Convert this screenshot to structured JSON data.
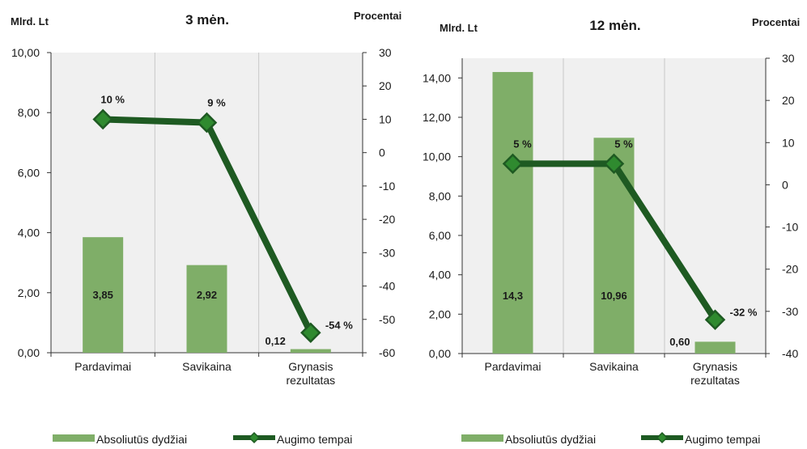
{
  "colors": {
    "bar": "#7fae68",
    "line": "#1e5a22",
    "marker": "#2f8a2f",
    "plot_bg": "#f0f0f0",
    "grid": "#c8c8c8"
  },
  "chart_data": [
    {
      "type": "bar+line",
      "title": "3 mėn.",
      "ylabel_left": "Mlrd. Lt",
      "ylabel_right": "Procentai",
      "categories": [
        "Pardavimai",
        "Savikaina",
        "Grynasis rezultatas"
      ],
      "category_lines": [
        [
          "Pardavimai"
        ],
        [
          "Savikaina"
        ],
        [
          "Grynasis",
          "rezultatas"
        ]
      ],
      "series": [
        {
          "name": "Absoliutūs dydžiai",
          "kind": "bar",
          "axis": "left",
          "values": [
            3.85,
            2.92,
            0.12
          ],
          "labels": [
            "3,85",
            "2,92",
            "0,12"
          ]
        },
        {
          "name": "Augimo tempai",
          "kind": "line",
          "axis": "right",
          "values": [
            10,
            9,
            -54
          ],
          "labels": [
            "10 %",
            "9 %",
            "-54 %"
          ]
        }
      ],
      "ylim_left": [
        0,
        10
      ],
      "yticks_left": [
        0,
        2,
        4,
        6,
        8,
        10
      ],
      "ytick_labels_left": [
        "0,00",
        "2,00",
        "4,00",
        "6,00",
        "8,00",
        "10,00"
      ],
      "ylim_right": [
        -60,
        30
      ],
      "yticks_right": [
        -60,
        -50,
        -40,
        -30,
        -20,
        -10,
        0,
        10,
        20,
        30
      ],
      "ytick_labels_right": [
        "-60",
        "-50",
        "-40",
        "-30",
        "-20",
        "-10",
        "0",
        "10",
        "20",
        "30"
      ],
      "grid": "vertical",
      "legend": "bottom"
    },
    {
      "type": "bar+line",
      "title": "12 mėn.",
      "ylabel_left": "Mlrd. Lt",
      "ylabel_right": "Procentai",
      "categories": [
        "Pardavimai",
        "Savikaina",
        "Grynasis rezultatas"
      ],
      "category_lines": [
        [
          "Pardavimai"
        ],
        [
          "Savikaina"
        ],
        [
          "Grynasis",
          "rezultatas"
        ]
      ],
      "series": [
        {
          "name": "Absoliutūs dydžiai",
          "kind": "bar",
          "axis": "left",
          "values": [
            14.3,
            10.96,
            0.6
          ],
          "labels": [
            "14,3",
            "10,96",
            "0,60"
          ]
        },
        {
          "name": "Augimo tempai",
          "kind": "line",
          "axis": "right",
          "values": [
            5,
            5,
            -32
          ],
          "labels": [
            "5 %",
            "5 %",
            "-32 %"
          ]
        }
      ],
      "ylim_left": [
        0,
        15
      ],
      "yticks_left": [
        0,
        2,
        4,
        6,
        8,
        10,
        12,
        14
      ],
      "ytick_labels_left": [
        "0,00",
        "2,00",
        "4,00",
        "6,00",
        "8,00",
        "10,00",
        "12,00",
        "14,00"
      ],
      "ylim_right": [
        -40,
        30
      ],
      "yticks_right": [
        -40,
        -30,
        -20,
        -10,
        0,
        10,
        20,
        30
      ],
      "ytick_labels_right": [
        "-40",
        "-30",
        "-20",
        "-10",
        "0",
        "10",
        "20",
        "30"
      ],
      "grid": "vertical",
      "legend": "bottom"
    }
  ]
}
